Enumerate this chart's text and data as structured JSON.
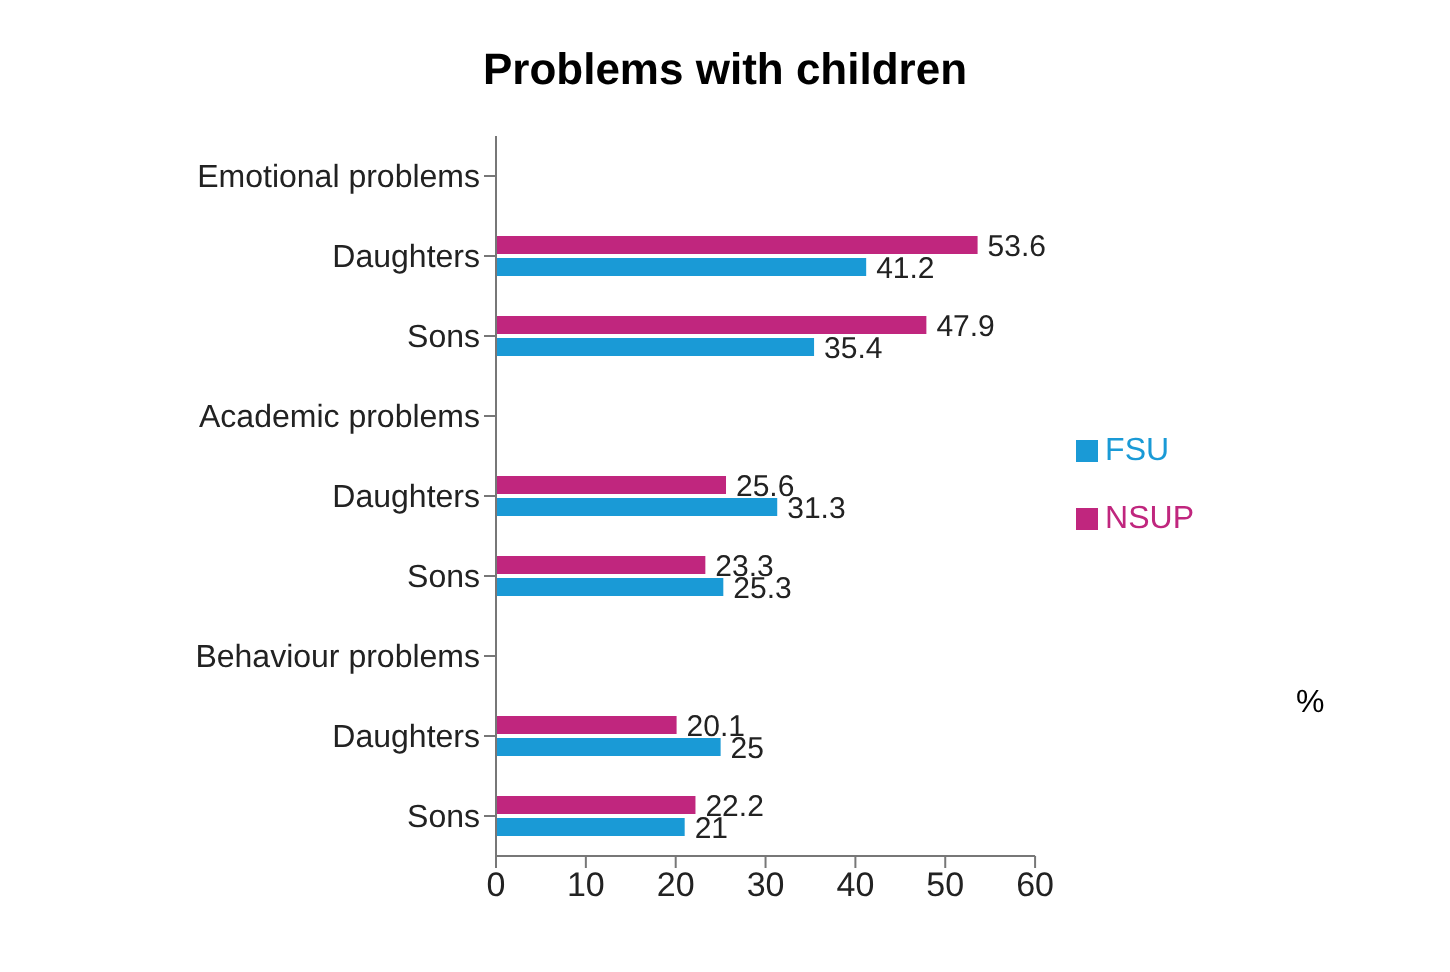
{
  "chart_data": {
    "type": "bar",
    "orientation": "horizontal",
    "title": "Problems with children",
    "categories": [
      "Emotional problems",
      "Daughters",
      "Sons",
      "Academic problems",
      "Daughters",
      "Sons",
      "Behaviour problems",
      "Daughters",
      "Sons"
    ],
    "series": [
      {
        "name": "NSUP",
        "color": "#c0267e",
        "values": [
          null,
          53.6,
          47.9,
          null,
          25.6,
          23.3,
          null,
          20.1,
          22.2
        ]
      },
      {
        "name": "FSU",
        "color": "#1a9ad6",
        "values": [
          null,
          41.2,
          35.4,
          null,
          31.3,
          25.3,
          null,
          25,
          21
        ]
      }
    ],
    "xlim": [
      0,
      60
    ],
    "xticks": [
      0,
      10,
      20,
      30,
      40,
      50,
      60
    ],
    "data_labels": true,
    "legend": "right",
    "grid": false,
    "annotations": [
      "%"
    ]
  }
}
